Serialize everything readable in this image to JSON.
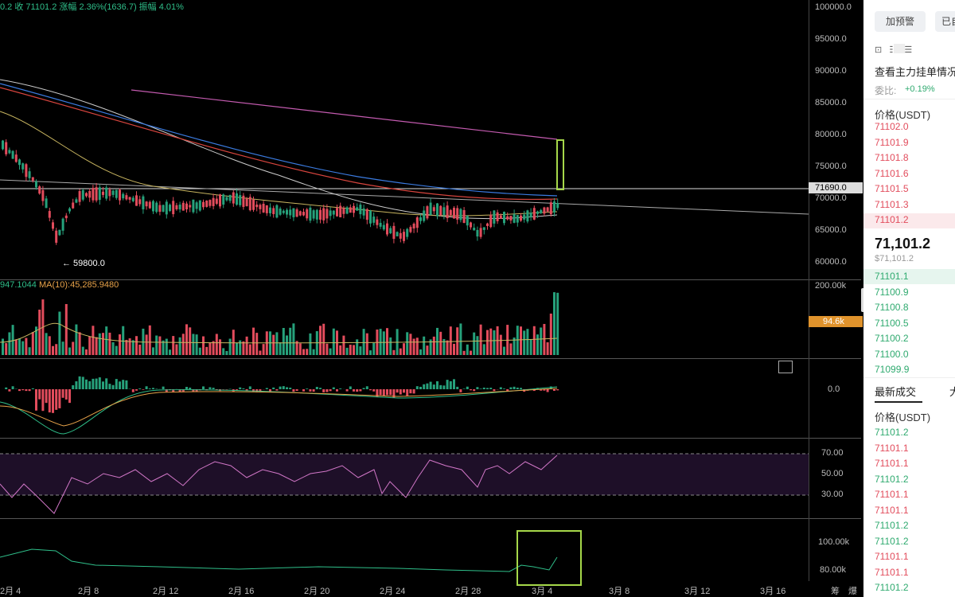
{
  "header": {
    "ohlc_text": "0.2  收 71101.2  涨幅 2.36%(1636.7)  振幅 4.01%"
  },
  "price_axis": [
    "100000.0",
    "95000.0",
    "90000.0",
    "85000.0",
    "80000.0",
    "75000.0",
    "70000.0",
    "65000.0",
    "60000.0"
  ],
  "price_marker": "71690.0",
  "low_annotation": "← 59800.0",
  "volume": {
    "info_prefix": "947.1044",
    "info_ma": "MA(10):45,285.9480",
    "axis_top": "200.00k",
    "current_tag": "94.6k"
  },
  "macd": {
    "axis_zero": "0.0"
  },
  "rsi": {
    "axis": [
      "70.00",
      "50.00",
      "30.00"
    ]
  },
  "bottom_indicator": {
    "axis": [
      "100.00k",
      "80.00k"
    ]
  },
  "x_axis": [
    "2月 4",
    "2月 8",
    "2月 12",
    "2月 16",
    "2月 20",
    "2月 24",
    "2月 28",
    "3月 4",
    "3月 8",
    "3月 12",
    "3月 16"
  ],
  "x_axis_right": [
    "筹",
    "爆"
  ],
  "panel": {
    "buttons": [
      "加预警",
      "已自"
    ],
    "depth_link": "查看主力挂单情况",
    "ratio_label": "委比:",
    "ratio_value": "+0.19%",
    "price_header": "价格(USDT)",
    "asks": [
      "71102.0",
      "71101.9",
      "71101.8",
      "71101.6",
      "71101.5",
      "71101.3",
      "71101.2"
    ],
    "last_price": "71,101.2",
    "last_price_usd": "$71,101.2",
    "bids": [
      "71101.1",
      "71100.9",
      "71100.8",
      "71100.5",
      "71100.2",
      "71100.0",
      "71099.9"
    ],
    "trades_tab": "最新成交",
    "trades_tab2": "大",
    "trades_header": "价格(USDT)",
    "trades": [
      {
        "price": "71101.2",
        "side": "buy"
      },
      {
        "price": "71101.1",
        "side": "sell"
      },
      {
        "price": "71101.1",
        "side": "sell"
      },
      {
        "price": "71101.2",
        "side": "buy"
      },
      {
        "price": "71101.1",
        "side": "sell"
      },
      {
        "price": "71101.1",
        "side": "sell"
      },
      {
        "price": "71101.2",
        "side": "buy"
      },
      {
        "price": "71101.2",
        "side": "buy"
      },
      {
        "price": "71101.1",
        "side": "sell"
      },
      {
        "price": "71101.1",
        "side": "sell"
      },
      {
        "price": "71101.2",
        "side": "buy"
      }
    ]
  },
  "colors": {
    "up": "#26a17b",
    "down": "#e24c5c",
    "highlight": "#a6d84a"
  }
}
